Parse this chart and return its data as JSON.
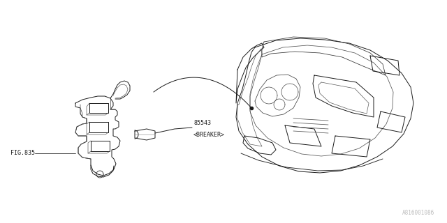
{
  "bg_color": "#ffffff",
  "line_color": "#1a1a1a",
  "text_color": "#1a1a1a",
  "label_85543": "85543",
  "label_breaker": "<BREAKER>",
  "label_fig835": "FIG.835",
  "watermark": "A816001086",
  "fig_width": 6.4,
  "fig_height": 3.2,
  "dpi": 100
}
